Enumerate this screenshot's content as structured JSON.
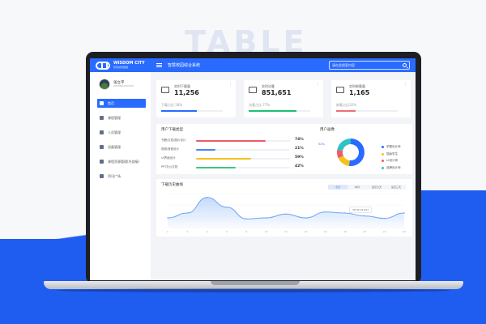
{
  "showcase_title": "TABLE",
  "app": {
    "logo_name": "WISDOM CITY",
    "logo_sub": "智慧城市数据",
    "system_name": "智慧校园综合系统",
    "search_placeholder": "请在此搜索内容"
  },
  "user": {
    "name": "张立平",
    "role": "ADMINISTRATOR"
  },
  "sidebar": {
    "items": [
      {
        "label": "首页",
        "icon": "home-icon",
        "active": true
      },
      {
        "label": "课程管理",
        "icon": "book-icon",
        "active": false
      },
      {
        "label": "人员管理",
        "icon": "people-icon",
        "active": false
      },
      {
        "label": "设备管理",
        "icon": "device-icon",
        "active": false
      },
      {
        "label": "课程资源管理(外部接)",
        "icon": "link-icon",
        "active": false
      },
      {
        "label": "资讯广场",
        "icon": "news-icon",
        "active": false
      }
    ]
  },
  "stats": [
    {
      "label": "实时下载量",
      "value": "11,256",
      "sub": "下载占比 58%",
      "pct": 58,
      "color": "#2a6bff",
      "icon": "download-icon"
    },
    {
      "label": "实时访客",
      "value": "851,651",
      "sub": "访客占比 77%",
      "pct": 77,
      "color": "#1fbf75",
      "icon": "monitor-icon"
    },
    {
      "label": "实时卸载量",
      "value": "1,165",
      "sub": "卸载占比32%",
      "pct": 32,
      "color": "#ee6d7a",
      "icon": "trash-icon"
    }
  ],
  "download_types": {
    "title": "用户下载类型",
    "rows": [
      {
        "label": "书籍/文档/图片设计",
        "pct": "74%",
        "value": 74,
        "color": "#ee5b65"
      },
      {
        "label": "视频/音频设计",
        "pct": "21%",
        "value": 21,
        "color": "#4f83f6"
      },
      {
        "label": "UI界面设计",
        "pct": "59%",
        "value": 59,
        "color": "#f4c21c"
      },
      {
        "label": "PPT办公文档",
        "pct": "42%",
        "value": 42,
        "color": "#3ec47f"
      }
    ]
  },
  "user_profile": {
    "title": "用户画像",
    "label": "52%",
    "legend": [
      {
        "label": "学霸设计师",
        "color": "#2a6bff",
        "share": 52
      },
      {
        "label": "插画学生",
        "color": "#f4c21c",
        "share": 16
      },
      {
        "label": "UI设计师",
        "color": "#ee5b65",
        "share": 10
      },
      {
        "label": "品牌设计师",
        "color": "#2fc3c9",
        "share": 22
      }
    ]
  },
  "trend": {
    "title": "下载历史曲线",
    "tabs": [
      {
        "label": "今日",
        "active": true
      },
      {
        "label": "本月",
        "active": false
      },
      {
        "label": "最近七天",
        "active": false
      },
      {
        "label": "最近三天",
        "active": false
      }
    ],
    "tooltip": "18:30  22,501"
  },
  "chart_data": {
    "type": "area",
    "x": [
      "0",
      "2",
      "4",
      "6",
      "8",
      "10",
      "12",
      "14",
      "16",
      "18",
      "20",
      "22",
      "24"
    ],
    "values": [
      20,
      30,
      62,
      42,
      18,
      20,
      28,
      20,
      32,
      30,
      24,
      19,
      30
    ],
    "color": "#8ab6f8",
    "title": "下载历史曲线"
  }
}
